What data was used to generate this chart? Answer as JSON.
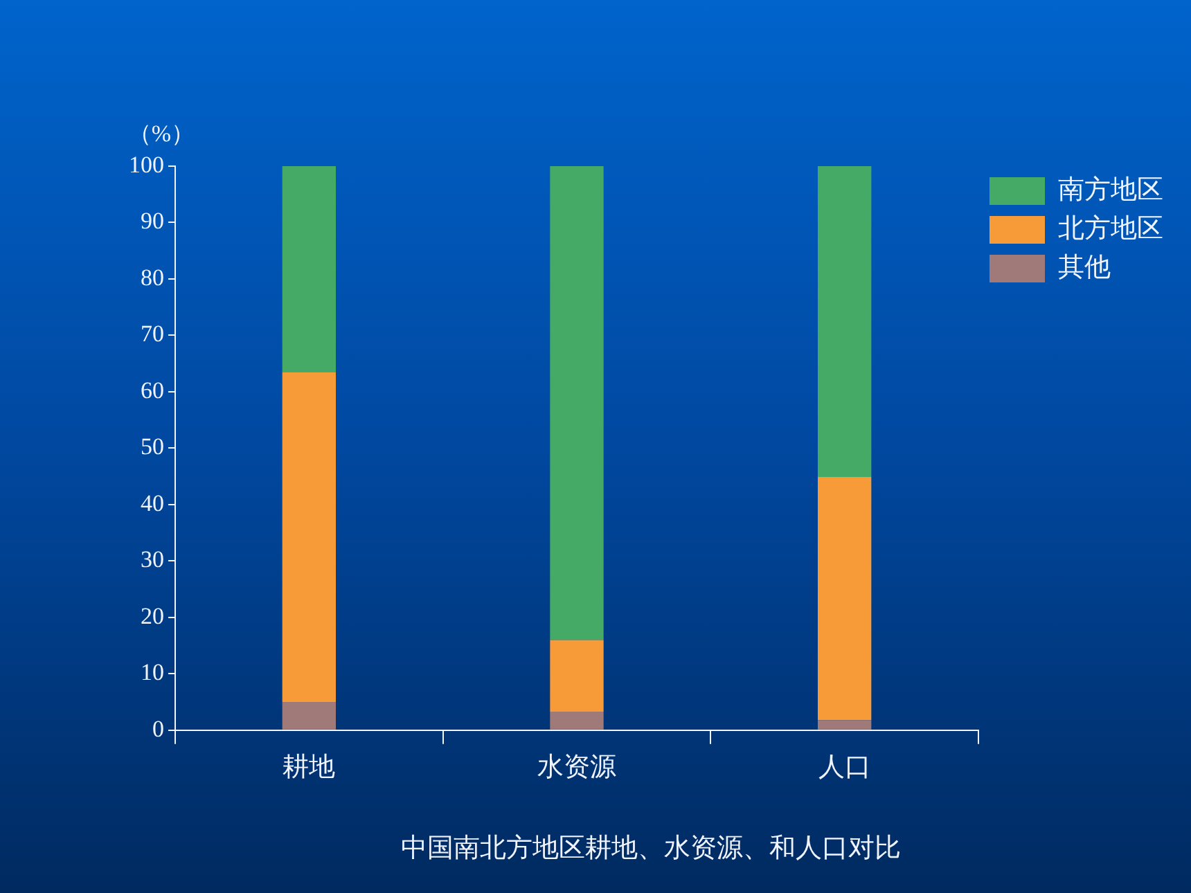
{
  "chart_data": {
    "type": "bar",
    "stacked": true,
    "title": "中国南北方地区耕地、水资源、和人口对比",
    "ylabel": "（%）",
    "categories": [
      "耕地",
      "水资源",
      "人口"
    ],
    "series": [
      {
        "name": "其他",
        "color": "#a07a78",
        "values": [
          5,
          3.3,
          1.8
        ]
      },
      {
        "name": "北方地区",
        "color": "#f79a38",
        "values": [
          58.5,
          12.7,
          43.1
        ]
      },
      {
        "name": "南方地区",
        "color": "#44aa66",
        "values": [
          36.5,
          84,
          55.1
        ]
      }
    ],
    "ylim": [
      0,
      100
    ],
    "yticks": [
      0,
      10,
      20,
      30,
      40,
      50,
      60,
      70,
      80,
      90,
      100
    ],
    "grid": false,
    "legend": "top right"
  }
}
